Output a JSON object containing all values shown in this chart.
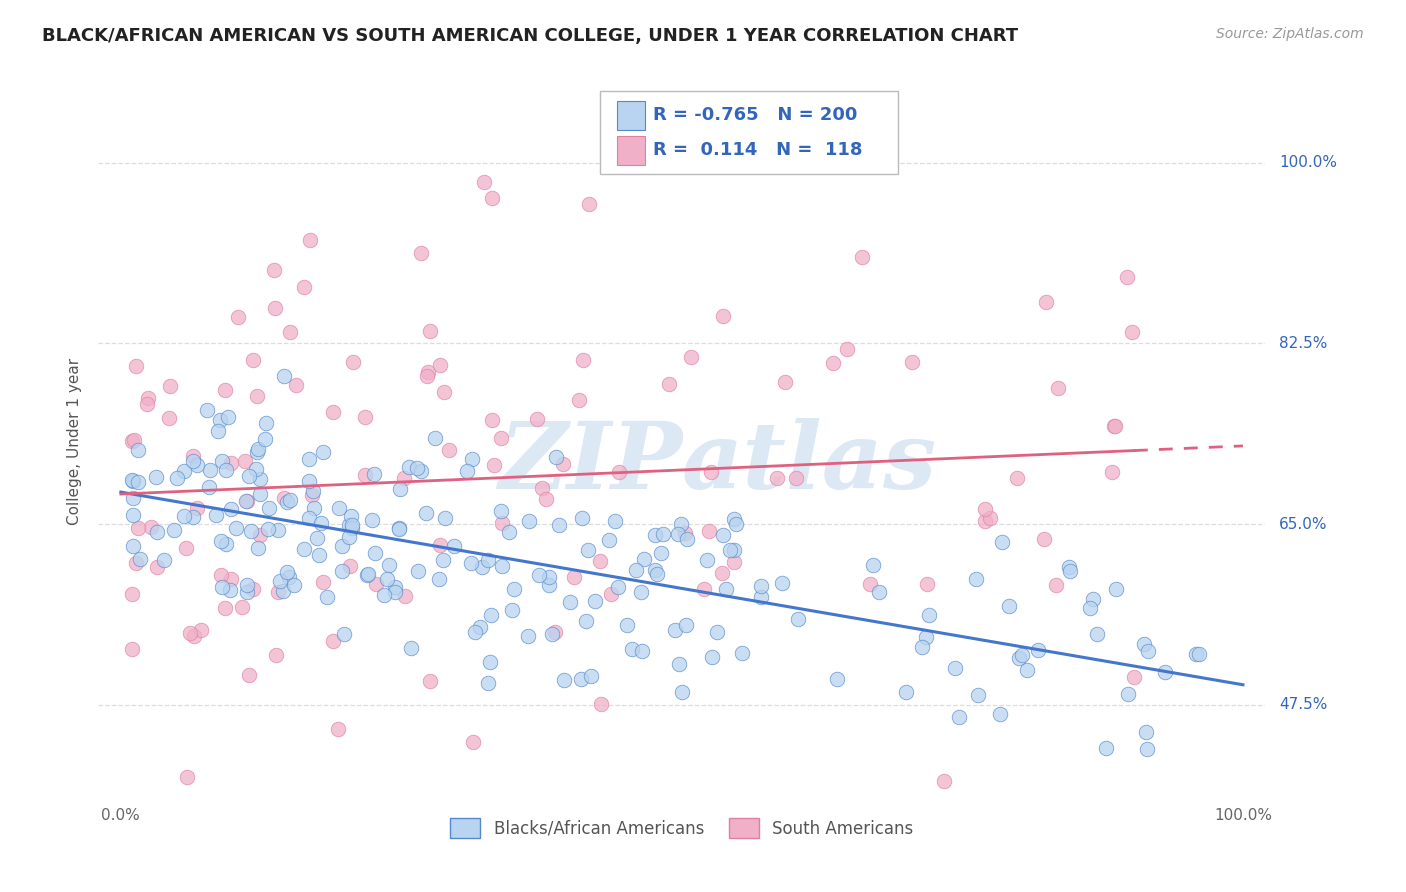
{
  "title": "BLACK/AFRICAN AMERICAN VS SOUTH AMERICAN COLLEGE, UNDER 1 YEAR CORRELATION CHART",
  "source": "Source: ZipAtlas.com",
  "ylabel": "College, Under 1 year",
  "ytick_labels": [
    "47.5%",
    "65.0%",
    "82.5%",
    "100.0%"
  ],
  "ytick_values": [
    0.475,
    0.65,
    0.825,
    1.0
  ],
  "legend_label1": "Blacks/African Americans",
  "legend_label2": "South Americans",
  "R1": -0.765,
  "N1": 200,
  "R2": 0.114,
  "N2": 118,
  "color_blue": "#b8d4f0",
  "color_pink": "#f0b0c8",
  "color_blue_edge": "#5588cc",
  "color_pink_edge": "#e080a0",
  "color_blue_line": "#4477cc",
  "color_pink_line": "#e06080",
  "color_blue_text": "#3366bb",
  "background_color": "#ffffff",
  "watermark_color": "#dde8f5",
  "title_fontsize": 13,
  "ymin": 0.38,
  "ymax": 1.08
}
